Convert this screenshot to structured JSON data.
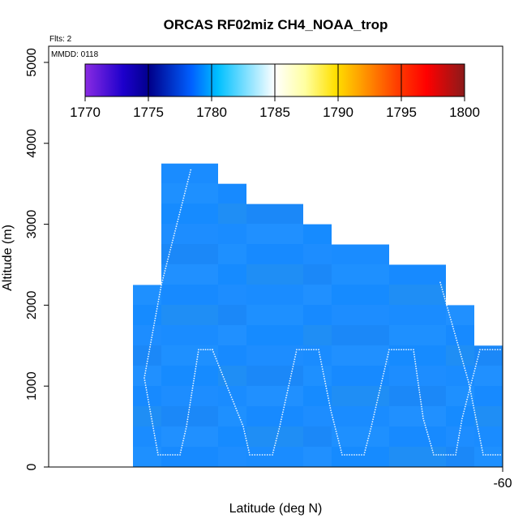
{
  "chart_data": {
    "type": "heatmap",
    "title": "ORCAS RF02miz CH4_NOAA_trop",
    "xlabel": "Latitude (deg N)",
    "ylabel": "Altitude (m)",
    "x_tick_labels": [
      "-60"
    ],
    "y_ticks": [
      0,
      1000,
      2000,
      3000,
      4000,
      5000
    ],
    "ylim": [
      0,
      5200
    ],
    "annotations": {
      "flights": "Flts: 2",
      "date": "MMDD: 0118"
    },
    "colorbar": {
      "min": 1770,
      "max": 1800,
      "ticks": [
        1770,
        1775,
        1780,
        1785,
        1790,
        1795,
        1800
      ],
      "colors": [
        "#8a2be2",
        "#0000cd",
        "#00008b",
        "#1e90ff",
        "#00bfff",
        "#ffffff",
        "#ffff66",
        "#ffd700",
        "#ffa500",
        "#ff4500",
        "#ff0000",
        "#b22222",
        "#8b1a1a"
      ]
    },
    "profile_ceilings_m": [
      2250,
      3750,
      3500,
      3250,
      3000,
      2750,
      2500,
      2000,
      1500
    ],
    "cell_color": "#1a8cff",
    "track_color": "#e8f4ff",
    "flight_track_altitudes_m": [
      150,
      1450
    ]
  }
}
